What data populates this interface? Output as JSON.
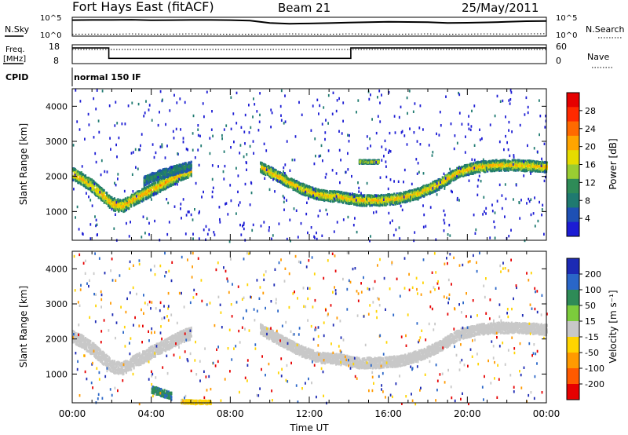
{
  "header": {
    "station": "Fort Hays East (fitACF)",
    "beam": "Beam 21",
    "date": "25/May/2011"
  },
  "scan_panel": {
    "left_label": "N.Sky",
    "right_label": "N.Search",
    "left_ticks": [
      "10^5",
      "10^0"
    ],
    "right_ticks": [
      "10^5",
      "10^0"
    ]
  },
  "freq_panel": {
    "left_label_line1": "Freq.",
    "left_label_line2": "[MHz]",
    "right_label": "Nave",
    "left_ticks": [
      "18",
      "8"
    ],
    "right_ticks": [
      "60",
      "0"
    ]
  },
  "cpid": {
    "label": "CPID",
    "mode_text": "normal 150 IF"
  },
  "power_panel": {
    "ylabel": "Slant Range [km]",
    "colorbar_label": "Power [dB]",
    "colorbar_ticks": [
      "28",
      "24",
      "20",
      "16",
      "12",
      "8",
      "4"
    ],
    "colorbar_colors": [
      "#e60000",
      "#ff2a00",
      "#ff6a00",
      "#ffa500",
      "#e6dc00",
      "#9acd32",
      "#2e8b57",
      "#1f7a70",
      "#1e50b4",
      "#1c1cd4"
    ]
  },
  "velocity_panel": {
    "ylabel": "Slant Range [km]",
    "colorbar_label": "Velocity [m s⁻¹]",
    "colorbar_ticks": [
      "200",
      "100",
      "50",
      "15",
      "-15",
      "-50",
      "-100",
      "-200"
    ],
    "colorbar_colors": [
      "#1c2ab4",
      "#2a66c8",
      "#2e8b57",
      "#7ccc3c",
      "#c8c8c8",
      "#ffd400",
      "#ff9a00",
      "#ff5a00",
      "#e60000"
    ]
  },
  "xaxis": {
    "label": "Time UT",
    "ticks": [
      "00:00",
      "04:00",
      "08:00",
      "12:00",
      "16:00",
      "20:00",
      "00:00"
    ]
  },
  "chart_data": [
    {
      "type": "line",
      "title": "N.Sky / N.Search",
      "x": [
        0,
        1,
        2,
        3,
        4,
        5,
        6,
        7,
        8,
        9,
        10,
        11,
        12,
        13,
        14,
        15,
        16,
        17,
        18,
        19,
        20,
        21,
        22,
        23,
        24
      ],
      "series": [
        {
          "name": "N.Sky",
          "values": [
            0.85,
            0.86,
            0.86,
            0.87,
            0.84,
            0.85,
            0.86,
            0.86,
            0.85,
            0.82,
            0.7,
            0.66,
            0.67,
            0.69,
            0.72,
            0.74,
            0.76,
            0.75,
            0.74,
            0.7,
            0.71,
            0.73,
            0.76,
            0.79,
            0.8
          ]
        },
        {
          "name": "N.Search",
          "values": [
            0.1,
            0.11,
            0.1,
            0.12,
            0.1,
            0.11,
            0.12,
            0.11,
            0.1,
            0.1,
            0.11,
            0.12,
            0.11,
            0.1,
            0.12,
            0.11,
            0.1,
            0.11,
            0.12,
            0.1,
            0.11,
            0.12,
            0.11,
            0.12,
            0.13
          ]
        }
      ]
    },
    {
      "type": "line",
      "title": "Freq. / Nave",
      "x": [
        0,
        1.85,
        1.85,
        14.1,
        14.1,
        24
      ],
      "series": [
        {
          "name": "Freq. [MHz]",
          "values": [
            16.3,
            16.3,
            10.8,
            10.8,
            16.3,
            16.3
          ]
        },
        {
          "name": "Nave",
          "values": [
            45,
            45,
            45,
            45,
            45,
            45
          ]
        }
      ],
      "ylim": [
        8,
        18
      ]
    },
    {
      "type": "heatmap",
      "title": "Power [dB]",
      "xlabel": "Time UT",
      "ylabel": "Slant Range [km]",
      "xlim": [
        0,
        24
      ],
      "ylim": [
        180,
        4500
      ],
      "bands": [
        {
          "t": [
            0.0,
            0.5,
            1.0,
            1.5,
            2.0,
            2.5,
            3.0,
            3.5,
            4.0,
            4.5,
            5.0,
            5.5,
            6.0
          ],
          "r": [
            2100,
            1950,
            1750,
            1500,
            1250,
            1180,
            1350,
            1500,
            1650,
            1800,
            1950,
            2100,
            2200
          ],
          "width": 350,
          "power": 22
        },
        {
          "t": [
            3.6,
            4.2,
            4.8,
            5.4,
            6.0
          ],
          "r": [
            1900,
            2050,
            2150,
            2250,
            2330
          ],
          "width": 250,
          "power": 10
        },
        {
          "t": [
            9.5,
            10.5,
            11.5,
            12.5,
            13.5,
            14.5,
            15.5,
            16.5,
            17.5,
            18.5,
            19.5,
            20.5,
            21.5,
            22.5,
            24.0
          ],
          "r": [
            2300,
            2000,
            1700,
            1500,
            1450,
            1350,
            1350,
            1400,
            1550,
            1800,
            2150,
            2300,
            2350,
            2350,
            2300
          ],
          "width": 300,
          "power": 21
        },
        {
          "t": [
            14.5,
            15.0,
            15.5
          ],
          "r": [
            2450,
            2450,
            2450
          ],
          "width": 100,
          "power": 18
        }
      ]
    },
    {
      "type": "heatmap",
      "title": "Velocity [m s⁻¹]",
      "xlabel": "Time UT",
      "ylabel": "Slant Range [km]",
      "xlim": [
        0,
        24
      ],
      "ylim": [
        180,
        4500
      ],
      "bands": [
        {
          "t": [
            0.0,
            0.5,
            1.0,
            1.5,
            2.0,
            2.5,
            3.0,
            3.5,
            4.0,
            4.5,
            5.0,
            5.5,
            6.0
          ],
          "r": [
            2100,
            1950,
            1750,
            1500,
            1250,
            1180,
            1350,
            1500,
            1650,
            1800,
            1950,
            2100,
            2200
          ],
          "width": 350,
          "velocity": 0
        },
        {
          "t": [
            9.5,
            10.5,
            11.5,
            12.5,
            13.5,
            14.5,
            15.5,
            16.5,
            17.5,
            18.5,
            19.5,
            20.5,
            21.5,
            22.5,
            24.0
          ],
          "r": [
            2300,
            2000,
            1700,
            1500,
            1450,
            1350,
            1350,
            1400,
            1550,
            1800,
            2150,
            2300,
            2350,
            2350,
            2300
          ],
          "width": 300,
          "velocity": 0
        },
        {
          "t": [
            4.0,
            4.5,
            5.0
          ],
          "r": [
            600,
            500,
            400
          ],
          "width": 200,
          "velocity": 40
        },
        {
          "t": [
            5.5,
            6.2,
            7.0
          ],
          "r": [
            250,
            230,
            220
          ],
          "width": 100,
          "velocity": -60
        }
      ]
    }
  ]
}
